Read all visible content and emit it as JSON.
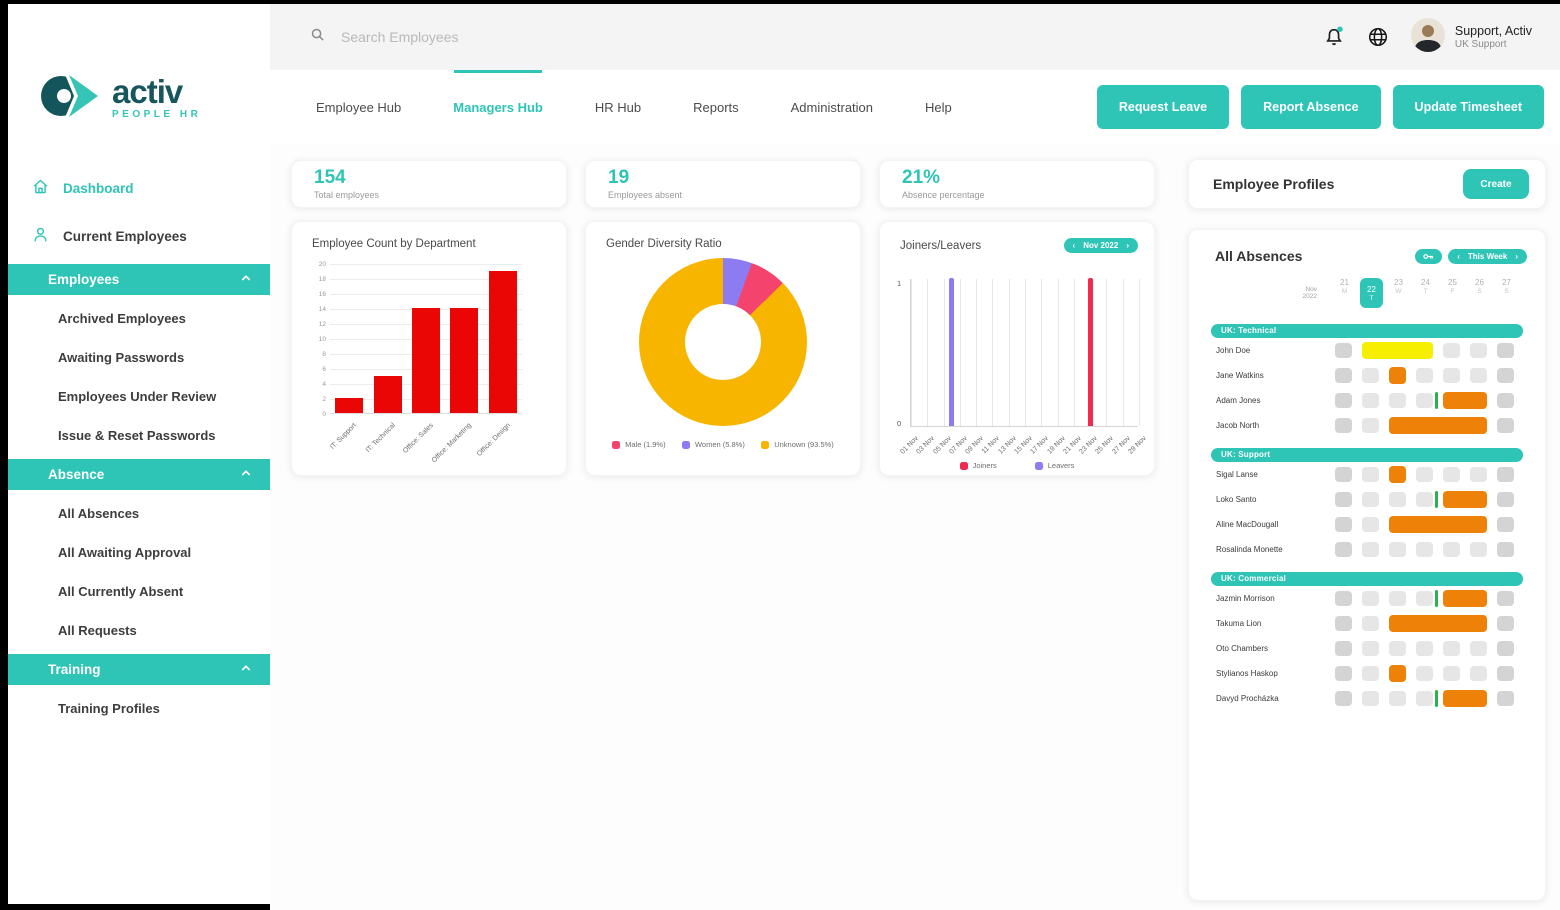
{
  "brand": {
    "name": "activ",
    "tagline": "PEOPLE HR"
  },
  "colors": {
    "teal": "#2EC4B6",
    "bar_red": "#EB0606",
    "donut_pink": "#F4436C",
    "donut_purple": "#8C7BF1",
    "donut_yellow": "#F7B500",
    "joiner_red": "#F02B4F",
    "leaver_purple": "#8C7BF1",
    "absence_orange": "#EE8208",
    "absence_yellow": "#F6EF00",
    "marker_green": "#28B44B",
    "cell_gray": "#E6E6E6",
    "cell_gray_dark": "#D4D4D4"
  },
  "topbar": {
    "search_placeholder": "Search Employees",
    "user_name": "Support, Activ",
    "user_role": "UK Support"
  },
  "nav": {
    "tabs": [
      {
        "label": "Employee Hub",
        "active": false
      },
      {
        "label": "Managers Hub",
        "active": true
      },
      {
        "label": "HR Hub",
        "active": false
      },
      {
        "label": "Reports",
        "active": false
      },
      {
        "label": "Administration",
        "active": false
      },
      {
        "label": "Help",
        "active": false
      }
    ],
    "actions": [
      "Request Leave",
      "Report Absence",
      "Update Timesheet"
    ]
  },
  "sidebar": {
    "items": [
      {
        "type": "link",
        "label": "Dashboard",
        "icon": "home-icon",
        "active": true
      },
      {
        "type": "link",
        "label": "Current Employees",
        "icon": "users-icon",
        "active": false
      },
      {
        "type": "section",
        "label": "Employees"
      },
      {
        "type": "sub",
        "label": "Archived Employees"
      },
      {
        "type": "sub",
        "label": "Awaiting Passwords"
      },
      {
        "type": "sub",
        "label": "Employees Under Review"
      },
      {
        "type": "sub",
        "label": "Issue & Reset Passwords"
      },
      {
        "type": "section",
        "label": "Absence"
      },
      {
        "type": "sub",
        "label": "All Absences"
      },
      {
        "type": "sub",
        "label": "All Awaiting Approval"
      },
      {
        "type": "sub",
        "label": "All Currently Absent"
      },
      {
        "type": "sub",
        "label": "All Requests"
      },
      {
        "type": "section",
        "label": "Training"
      },
      {
        "type": "sub",
        "label": "Training Profiles"
      }
    ]
  },
  "stats": [
    {
      "value": "154",
      "label": "Total employees"
    },
    {
      "value": "19",
      "label": "Employees absent"
    },
    {
      "value": "21%",
      "label": "Absence percentage"
    }
  ],
  "chart_data": [
    {
      "type": "bar",
      "title": "Employee Count by Department",
      "categories": [
        "IT: Support",
        "IT: Technical",
        "Office: Sales",
        "Office: Marketing",
        "Office: Design"
      ],
      "values": [
        2,
        5,
        14,
        14,
        19
      ],
      "ylim": [
        0,
        20
      ],
      "ytick_step": 2,
      "bar_color": "#EB0606",
      "grid": "horizontal",
      "legend_position": "none"
    },
    {
      "type": "pie",
      "title": "Gender Diversity Ratio",
      "donut": true,
      "slices": [
        {
          "label": "Male (1.9%)",
          "value": 1.9,
          "color": "#F4436C",
          "visual_pct": 7.0
        },
        {
          "label": "Women (5.8%)",
          "value": 5.8,
          "color": "#8C7BF1",
          "visual_pct": 5.6
        },
        {
          "label": "Unknown (93.5%)",
          "value": 93.5,
          "color": "#F7B500",
          "visual_pct": 87.4
        }
      ],
      "draw_order": [
        1,
        0,
        2
      ],
      "legend_position": "bottom"
    },
    {
      "type": "bar",
      "title": "Joiners/Leavers",
      "period_label": "Nov 2022",
      "period_prev": "‹",
      "period_next": "›",
      "x_ticks": [
        "01 Nov",
        "03 Nov",
        "05 Nov",
        "07 Nov",
        "09 Nov",
        "11 Nov",
        "13 Nov",
        "15 Nov",
        "17 Nov",
        "19 Nov",
        "21 Nov",
        "23 Nov",
        "25 Nov",
        "27 Nov",
        "29 Nov"
      ],
      "x_domain_days": [
        1,
        29
      ],
      "ylim": [
        0,
        1
      ],
      "yticks": [
        0,
        1
      ],
      "grid": "vertical",
      "legend_position": "bottom",
      "series": [
        {
          "name": "Joiners",
          "color": "#F02B4F",
          "points": [
            {
              "day": 23,
              "label": "23 Nov",
              "value": 1
            }
          ]
        },
        {
          "name": "Leavers",
          "color": "#8C7BF1",
          "points": [
            {
              "day": 6,
              "label": "06 Nov",
              "value": 1
            }
          ]
        }
      ]
    }
  ],
  "profiles_card": {
    "title": "Employee Profiles",
    "create_label": "Create"
  },
  "absences": {
    "title": "All Absences",
    "week_pill": {
      "prev": "‹",
      "label": "This Week",
      "next": "›"
    },
    "month": {
      "line1": "Nov",
      "line2": "2022"
    },
    "days": [
      {
        "num": "21",
        "letter": "M",
        "active": false
      },
      {
        "num": "22",
        "letter": "T",
        "active": true
      },
      {
        "num": "23",
        "letter": "W",
        "active": false
      },
      {
        "num": "24",
        "letter": "T",
        "active": false
      },
      {
        "num": "25",
        "letter": "F",
        "active": false
      },
      {
        "num": "26",
        "letter": "S",
        "active": false
      },
      {
        "num": "27",
        "letter": "S",
        "active": false
      }
    ],
    "groups": [
      {
        "name": "UK: Technical",
        "rows": [
          {
            "name": "John Doe",
            "cells": [
              2,
              0,
              0,
              0,
              1,
              1,
              2
            ],
            "bars": [
              {
                "start": 1,
                "span": 3,
                "color": "yellow"
              }
            ],
            "marker": null
          },
          {
            "name": "Jane Watkins",
            "cells": [
              2,
              1,
              0,
              1,
              1,
              1,
              2
            ],
            "bars": [
              {
                "start": 2,
                "span": 1,
                "color": "orange"
              }
            ],
            "marker": null
          },
          {
            "name": "Adam Jones",
            "cells": [
              2,
              1,
              1,
              1,
              0,
              0,
              2
            ],
            "bars": [
              {
                "start": 4,
                "span": 2,
                "color": "orange"
              }
            ],
            "marker": 3
          },
          {
            "name": "Jacob North",
            "cells": [
              2,
              1,
              0,
              0,
              0,
              0,
              2
            ],
            "bars": [
              {
                "start": 2,
                "span": 4,
                "color": "orange"
              }
            ],
            "marker": null
          }
        ]
      },
      {
        "name": "UK: Support",
        "rows": [
          {
            "name": "Sigal Lanse",
            "cells": [
              2,
              1,
              0,
              1,
              1,
              1,
              2
            ],
            "bars": [
              {
                "start": 2,
                "span": 1,
                "color": "orange"
              }
            ],
            "marker": null
          },
          {
            "name": "Loko Santo",
            "cells": [
              2,
              1,
              1,
              1,
              0,
              0,
              2
            ],
            "bars": [
              {
                "start": 4,
                "span": 2,
                "color": "orange"
              }
            ],
            "marker": 3
          },
          {
            "name": "Aline MacDougall",
            "cells": [
              2,
              1,
              0,
              0,
              0,
              0,
              2
            ],
            "bars": [
              {
                "start": 2,
                "span": 4,
                "color": "orange"
              }
            ],
            "marker": null
          },
          {
            "name": "Rosalinda Monette",
            "cells": [
              2,
              1,
              1,
              1,
              1,
              1,
              2
            ],
            "bars": [],
            "marker": null
          }
        ]
      },
      {
        "name": "UK: Commercial",
        "rows": [
          {
            "name": "Jazmin Morrison",
            "cells": [
              2,
              1,
              1,
              1,
              0,
              0,
              2
            ],
            "bars": [
              {
                "start": 4,
                "span": 2,
                "color": "orange"
              }
            ],
            "marker": 3
          },
          {
            "name": "Takuma Lion",
            "cells": [
              2,
              1,
              0,
              0,
              0,
              0,
              2
            ],
            "bars": [
              {
                "start": 2,
                "span": 4,
                "color": "orange"
              }
            ],
            "marker": null
          },
          {
            "name": "Oto Chambers",
            "cells": [
              2,
              1,
              1,
              1,
              1,
              1,
              2
            ],
            "bars": [],
            "marker": null
          },
          {
            "name": "Stylianos Haskop",
            "cells": [
              2,
              1,
              0,
              1,
              1,
              1,
              2
            ],
            "bars": [
              {
                "start": 2,
                "span": 1,
                "color": "orange"
              }
            ],
            "marker": null
          },
          {
            "name": "Davyd Procházka",
            "cells": [
              2,
              1,
              1,
              1,
              0,
              0,
              2
            ],
            "bars": [
              {
                "start": 4,
                "span": 2,
                "color": "orange"
              }
            ],
            "marker": 3
          }
        ]
      }
    ]
  }
}
